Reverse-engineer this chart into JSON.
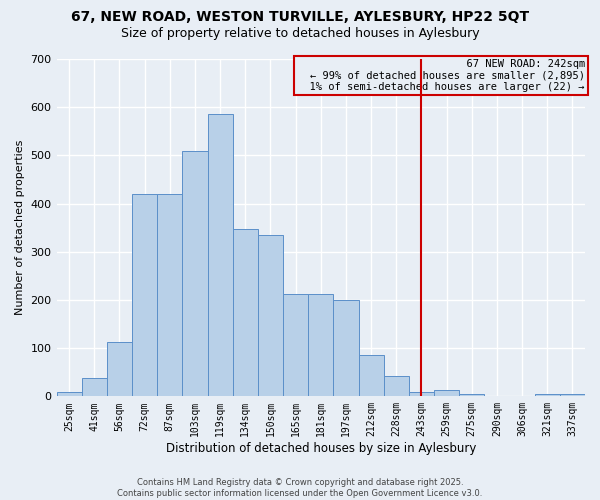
{
  "title_line1": "67, NEW ROAD, WESTON TURVILLE, AYLESBURY, HP22 5QT",
  "title_line2": "Size of property relative to detached houses in Aylesbury",
  "xlabel": "Distribution of detached houses by size in Aylesbury",
  "ylabel": "Number of detached properties",
  "footer": "Contains HM Land Registry data © Crown copyright and database right 2025.\nContains public sector information licensed under the Open Government Licence v3.0.",
  "categories": [
    "25sqm",
    "41sqm",
    "56sqm",
    "72sqm",
    "87sqm",
    "103sqm",
    "119sqm",
    "134sqm",
    "150sqm",
    "165sqm",
    "181sqm",
    "197sqm",
    "212sqm",
    "228sqm",
    "243sqm",
    "259sqm",
    "275sqm",
    "290sqm",
    "306sqm",
    "321sqm",
    "337sqm"
  ],
  "values": [
    8,
    38,
    113,
    420,
    420,
    510,
    585,
    348,
    335,
    213,
    213,
    200,
    85,
    42,
    10,
    13,
    4,
    0,
    0,
    5,
    5
  ],
  "bar_color": "#b8d0e8",
  "bar_edge_color": "#5b8fc9",
  "vline_x": 14,
  "vline_color": "#cc0000",
  "annotation_text": "  67 NEW ROAD: 242sqm\n← 99% of detached houses are smaller (2,895)\n  1% of semi-detached houses are larger (22) →",
  "annotation_box_color": "#cc0000",
  "ylim": [
    0,
    700
  ],
  "yticks": [
    0,
    100,
    200,
    300,
    400,
    500,
    600,
    700
  ],
  "bg_color": "#e8eef5",
  "grid_color": "#ffffff",
  "title_fontsize": 10,
  "subtitle_fontsize": 9,
  "annotation_fontsize": 7.5,
  "ylabel_fontsize": 8,
  "xlabel_fontsize": 8.5,
  "footer_fontsize": 6,
  "tick_fontsize": 7
}
